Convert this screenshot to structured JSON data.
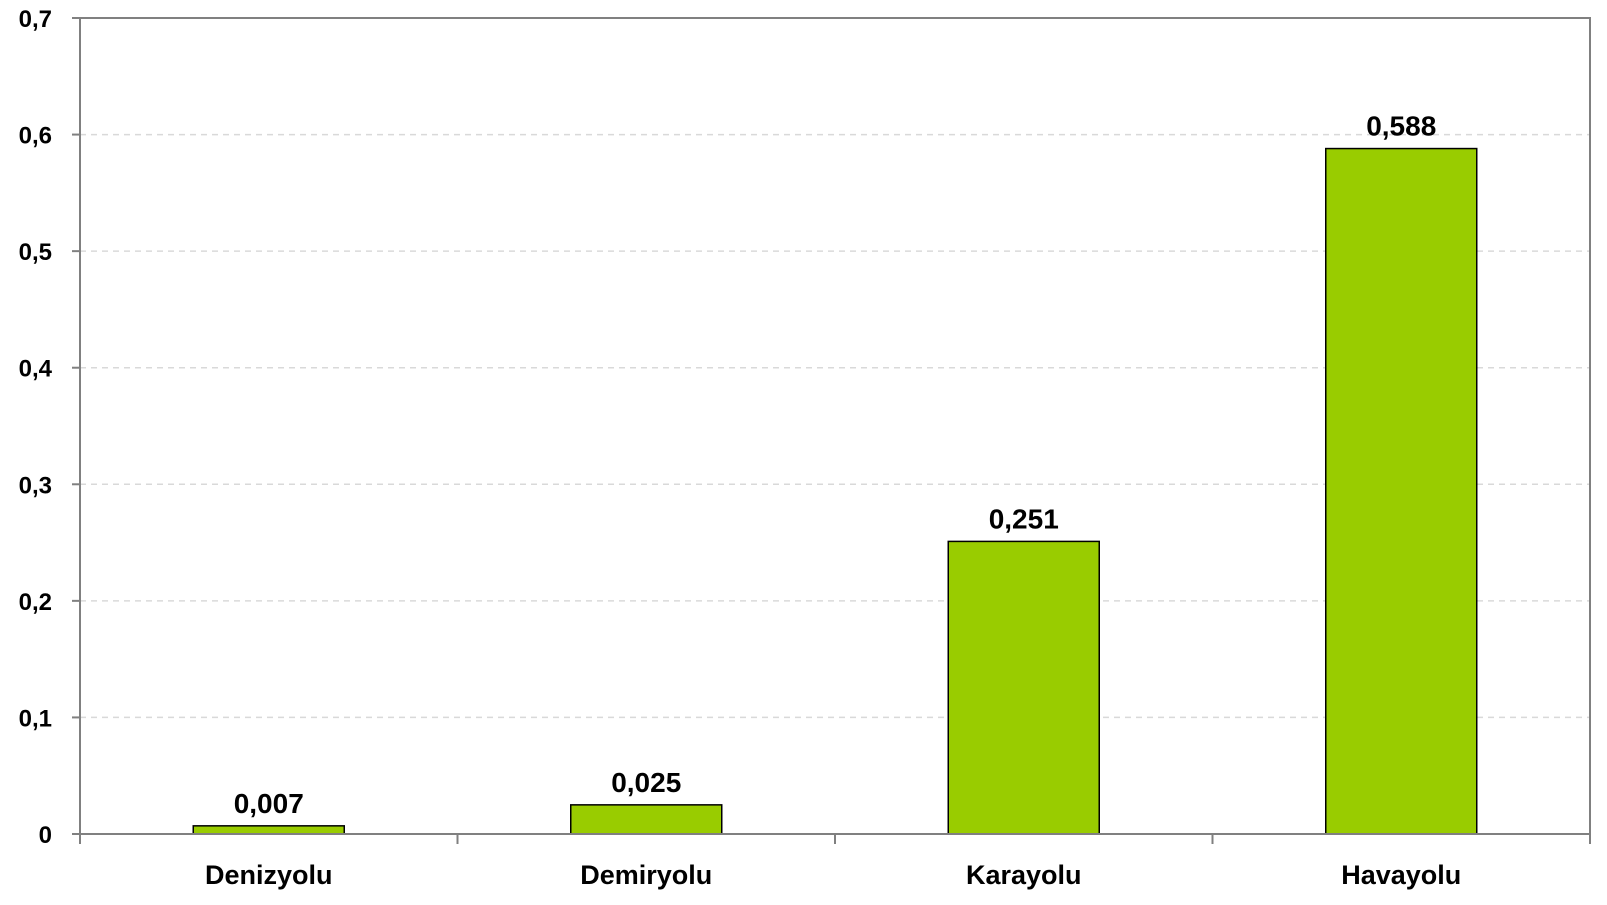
{
  "chart_data": {
    "type": "bar",
    "categories": [
      "Denizyolu",
      "Demiryolu",
      "Karayolu",
      "Havayolu"
    ],
    "values": [
      0.007,
      0.025,
      0.251,
      0.588
    ],
    "value_labels": [
      "0,007",
      "0,025",
      "0,251",
      "0,588"
    ],
    "title": "",
    "xlabel": "",
    "ylabel": "",
    "ylim": [
      0,
      0.7
    ],
    "yticks": [
      0,
      0.1,
      0.2,
      0.3,
      0.4,
      0.5,
      0.6,
      0.7
    ],
    "ytick_labels": [
      "0",
      "0,1",
      "0,2",
      "0,3",
      "0,4",
      "0,5",
      "0,6",
      "0,7"
    ],
    "grid": "horizontal dashed",
    "legend": "none",
    "bar_color": "#99cc00",
    "bar_edge_color": "#000000",
    "axis_color": "#808080",
    "grid_color": "#d9d9d9"
  }
}
